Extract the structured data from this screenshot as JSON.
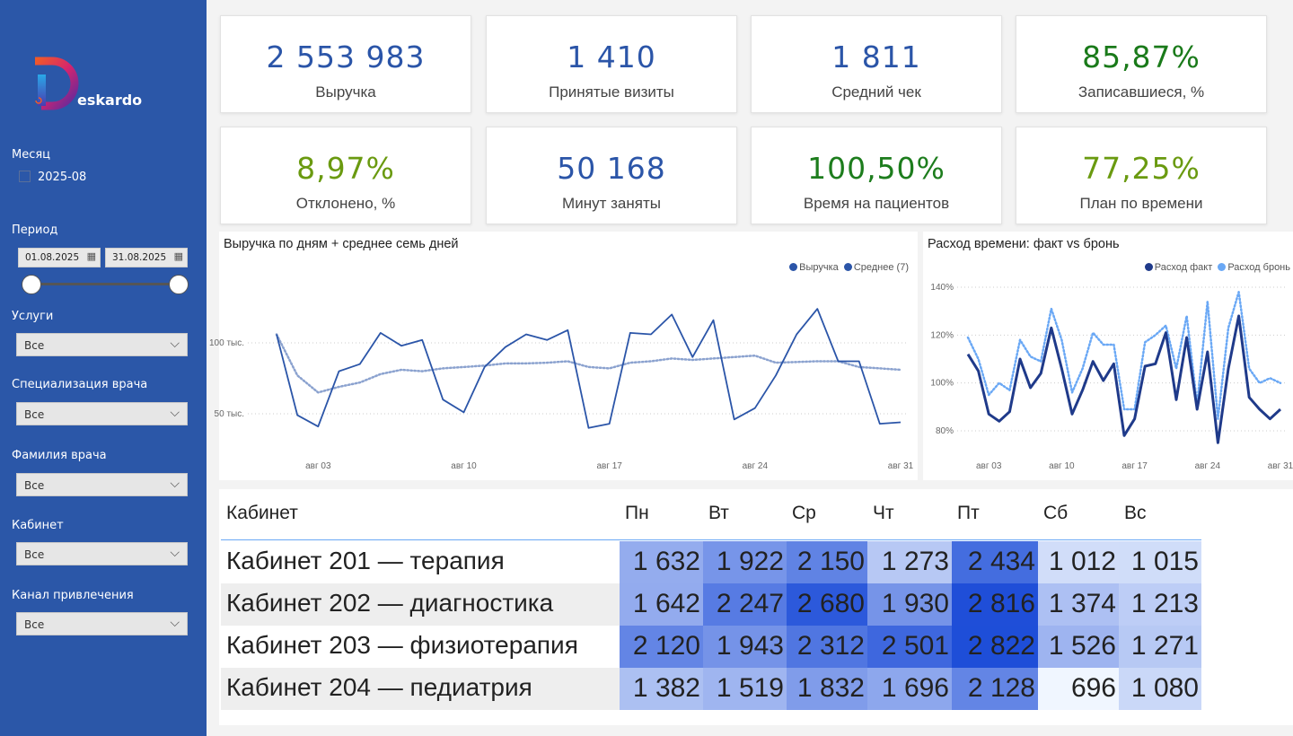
{
  "sidebar": {
    "logo_text": "eskardo",
    "month_label": "Месяц",
    "month_option": "2025-08",
    "period_label": "Период",
    "date_from": "01.08.2025",
    "date_to": "31.08.2025",
    "filters": [
      {
        "label": "Услуги",
        "value": "Все"
      },
      {
        "label": "Специализация врача",
        "value": "Все"
      },
      {
        "label": "Фамилия врача",
        "value": "Все"
      },
      {
        "label": "Кабинет",
        "value": "Все"
      },
      {
        "label": "Канал привлечения",
        "value": "Все"
      }
    ]
  },
  "kpis": [
    {
      "value": "2 553 983",
      "label": "Выручка",
      "color": "#2b55a8"
    },
    {
      "value": "1 410",
      "label": "Принятые визиты",
      "color": "#2b55a8"
    },
    {
      "value": "1 811",
      "label": "Средний чек",
      "color": "#2b55a8"
    },
    {
      "value": "85,87%",
      "label": "Записавшиеся, %",
      "color": "#1a7a1a"
    },
    {
      "value": "8,97%",
      "label": "Отклонено, %",
      "color": "#6a9a10"
    },
    {
      "value": "50 168",
      "label": "Минут заняты",
      "color": "#2b55a8"
    },
    {
      "value": "100,50%",
      "label": "Время на пациентов",
      "color": "#1d7d1d"
    },
    {
      "value": "77,25%",
      "label": "План по времени",
      "color": "#6a9a10"
    }
  ],
  "chart_data": [
    {
      "type": "line",
      "title": "Выручка по дням + среднее семь дней",
      "x": [
        1,
        2,
        3,
        4,
        5,
        6,
        7,
        8,
        9,
        10,
        11,
        12,
        13,
        14,
        15,
        16,
        17,
        18,
        19,
        20,
        21,
        22,
        23,
        24,
        25,
        26,
        27,
        28,
        29,
        30,
        31
      ],
      "xticks": [
        {
          "day": 3,
          "label": "авг 03"
        },
        {
          "day": 10,
          "label": "авг 10"
        },
        {
          "day": 17,
          "label": "авг 17"
        },
        {
          "day": 24,
          "label": "авг 24"
        },
        {
          "day": 31,
          "label": "авг 31"
        }
      ],
      "yticks": [
        {
          "value": 100,
          "label": "100 тыс."
        },
        {
          "value": 50,
          "label": "50 тыс."
        }
      ],
      "ylabel_units": "тыс.",
      "series": [
        {
          "name": "Выручка",
          "color": "#2b55a8",
          "style": "solid",
          "values": [
            106,
            49,
            41,
            80,
            85,
            107,
            98,
            102,
            60,
            51,
            83,
            97,
            106,
            102,
            109,
            40,
            43,
            107,
            106,
            120,
            90,
            116,
            46,
            54,
            77,
            106,
            124,
            87,
            87,
            43,
            44
          ]
        },
        {
          "name": "Среднее (7)",
          "color": "#2b55a8",
          "style": "dotted",
          "values": [
            106,
            77,
            65,
            69,
            72,
            78,
            81,
            80,
            82,
            83,
            84,
            85.5,
            85.5,
            86,
            87,
            83,
            82,
            86,
            87,
            89,
            88,
            89,
            90,
            91,
            86,
            86.5,
            87,
            87,
            83,
            82,
            81
          ]
        }
      ],
      "legend": "top-right"
    },
    {
      "type": "line",
      "title": "Расход времени: факт vs бронь",
      "x": [
        1,
        2,
        3,
        4,
        5,
        6,
        7,
        8,
        9,
        10,
        11,
        12,
        13,
        14,
        15,
        16,
        17,
        18,
        19,
        20,
        21,
        22,
        23,
        24,
        25,
        26,
        27,
        28,
        29,
        30,
        31
      ],
      "xticks": [
        {
          "day": 3,
          "label": "авг 03"
        },
        {
          "day": 10,
          "label": "авг 10"
        },
        {
          "day": 17,
          "label": "авг 17"
        },
        {
          "day": 24,
          "label": "авг 24"
        },
        {
          "day": 31,
          "label": "авг 31"
        }
      ],
      "yticks": [
        {
          "value": 140,
          "label": "140%"
        },
        {
          "value": 120,
          "label": "120%"
        },
        {
          "value": 100,
          "label": "100%"
        },
        {
          "value": 80,
          "label": "80%"
        }
      ],
      "series": [
        {
          "name": "Расход факт",
          "color": "#1f3a8a",
          "style": "solid",
          "values": [
            112,
            105,
            87,
            84,
            88,
            110,
            98,
            104,
            123,
            106,
            87,
            97,
            109,
            101,
            108,
            78,
            85,
            107,
            108,
            121,
            93,
            119,
            89,
            113,
            75,
            106,
            128,
            94,
            89,
            85,
            89
          ]
        },
        {
          "name": "Расход бронь",
          "color": "#6aa8f5",
          "style": "dotted",
          "values": [
            119,
            110,
            95,
            100,
            97,
            118,
            111,
            109,
            131,
            118,
            96,
            106,
            121,
            116,
            116,
            89,
            89,
            117,
            120,
            124,
            106,
            128,
            91,
            134,
            85,
            123,
            138,
            106,
            100,
            102,
            100
          ]
        }
      ],
      "legend": "top-right"
    }
  ],
  "table": {
    "header": "Кабинет",
    "days": [
      "Пн",
      "Вт",
      "Ср",
      "Чт",
      "Пт",
      "Сб",
      "Вс"
    ],
    "rows": [
      {
        "label": "Кабинет 201 — терапия",
        "cells": [
          "1 632",
          "1 922",
          "2 150",
          "1 273",
          "2 434",
          "1 012",
          "1 015"
        ],
        "values": [
          1632,
          1922,
          2150,
          1273,
          2434,
          1012,
          1015
        ]
      },
      {
        "label": "Кабинет 202 — диагностика",
        "cells": [
          "1 642",
          "2 247",
          "2 680",
          "1 930",
          "2 816",
          "1 374",
          "1 213"
        ],
        "values": [
          1642,
          2247,
          2680,
          1930,
          2816,
          1374,
          1213
        ]
      },
      {
        "label": "Кабинет 203 — физиотерапия",
        "cells": [
          "2 120",
          "1 943",
          "2 312",
          "2 501",
          "2 822",
          "1 526",
          "1 271"
        ],
        "values": [
          2120,
          1943,
          2312,
          2501,
          2822,
          1526,
          1271
        ]
      },
      {
        "label": "Кабинет 204 — педиатрия",
        "cells": [
          "1 382",
          "1 519",
          "1 832",
          "1 696",
          "2 128",
          "696",
          "1 080"
        ],
        "values": [
          1382,
          1519,
          1832,
          1696,
          2128,
          696,
          1080
        ]
      }
    ]
  }
}
